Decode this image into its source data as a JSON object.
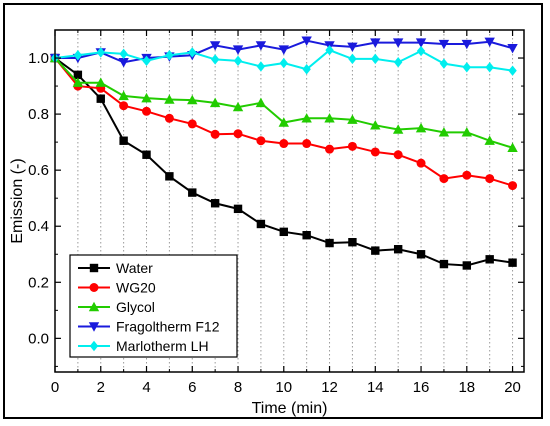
{
  "chart_data": {
    "type": "line",
    "title": "",
    "xlabel": "Time (min)",
    "ylabel": "Emission (-)",
    "xlim": [
      0,
      20.5
    ],
    "ylim": [
      -0.12,
      1.1
    ],
    "x_ticks": [
      0,
      2,
      4,
      6,
      8,
      10,
      12,
      14,
      16,
      18,
      20
    ],
    "x_tick_labels": [
      "0",
      "2",
      "4",
      "6",
      "8",
      "10",
      "12",
      "14",
      "16",
      "18",
      "20"
    ],
    "y_ticks": [
      0.0,
      0.2,
      0.4,
      0.6,
      0.8,
      1.0
    ],
    "y_tick_labels": [
      "0.0",
      "0.2",
      "0.4",
      "0.6",
      "0.8",
      "1.0"
    ],
    "grid": "vertical dotted",
    "legend_position": "bottom-left",
    "x": [
      0,
      1,
      2,
      3,
      4,
      5,
      6,
      7,
      8,
      9,
      10,
      11,
      12,
      13,
      14,
      15,
      16,
      17,
      18,
      19,
      20
    ],
    "series": [
      {
        "name": "Water",
        "color": "#000000",
        "marker": "square",
        "values": [
          1.0,
          0.94,
          0.855,
          0.705,
          0.655,
          0.578,
          0.52,
          0.482,
          0.462,
          0.408,
          0.38,
          0.368,
          0.34,
          0.343,
          0.313,
          0.318,
          0.3,
          0.265,
          0.26,
          0.282,
          0.27
        ]
      },
      {
        "name": "WG20",
        "color": "#ff0000",
        "marker": "circle",
        "values": [
          1.0,
          0.9,
          0.892,
          0.83,
          0.81,
          0.785,
          0.765,
          0.728,
          0.73,
          0.705,
          0.695,
          0.695,
          0.675,
          0.685,
          0.665,
          0.655,
          0.625,
          0.57,
          0.582,
          0.57,
          0.545
        ]
      },
      {
        "name": "Glycol",
        "color": "#22cc00",
        "marker": "triangle-up",
        "values": [
          1.0,
          0.912,
          0.912,
          0.865,
          0.857,
          0.852,
          0.85,
          0.84,
          0.825,
          0.84,
          0.77,
          0.785,
          0.785,
          0.78,
          0.76,
          0.745,
          0.75,
          0.735,
          0.735,
          0.705,
          0.68
        ]
      },
      {
        "name": "Fragoltherm F12",
        "color": "#1a1adc",
        "marker": "triangle-down",
        "values": [
          1.0,
          1.0,
          1.02,
          0.985,
          1.0,
          1.005,
          1.01,
          1.045,
          1.03,
          1.045,
          1.03,
          1.062,
          1.045,
          1.04,
          1.055,
          1.055,
          1.055,
          1.05,
          1.05,
          1.058,
          1.035
        ]
      },
      {
        "name": "Marlotherm LH",
        "color": "#00eeee",
        "marker": "diamond",
        "values": [
          1.0,
          1.01,
          1.02,
          1.015,
          0.99,
          1.01,
          1.02,
          0.995,
          0.99,
          0.97,
          0.982,
          0.96,
          1.028,
          0.997,
          0.997,
          0.985,
          1.025,
          0.98,
          0.967,
          0.967,
          0.955
        ]
      }
    ]
  }
}
